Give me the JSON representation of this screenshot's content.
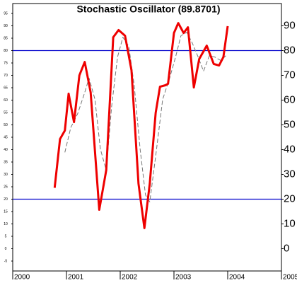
{
  "chart_data": {
    "type": "line",
    "title": "Stochastic Oscillator (89.8701)",
    "xlim": [
      2000,
      2005
    ],
    "xticks": [
      2000,
      2001,
      2002,
      2003,
      2004,
      2005
    ],
    "ylim": [
      -9,
      99
    ],
    "yticks": [
      0,
      10,
      20,
      30,
      40,
      50,
      60,
      70,
      80,
      90
    ],
    "y2lim": [
      -9,
      99
    ],
    "y2ticks": [
      -5,
      0,
      5,
      10,
      15,
      20,
      25,
      30,
      35,
      40,
      45,
      50,
      55,
      60,
      65,
      70,
      75,
      80,
      85,
      90,
      95
    ],
    "hlines": [
      80,
      20
    ],
    "hline_color": "#0000cc",
    "series": [
      {
        "color": "#ee0000",
        "dashed": false,
        "width": 3,
        "x": [
          2000.78,
          2000.88,
          2000.97,
          2001.04,
          2001.14,
          2001.24,
          2001.34,
          2001.45,
          2001.61,
          2001.74,
          2001.87,
          2001.97,
          2002.09,
          2002.21,
          2002.34,
          2002.45,
          2002.55,
          2002.66,
          2002.74,
          2002.84,
          2002.89,
          2003.0,
          2003.08,
          2003.18,
          2003.26,
          2003.37,
          2003.47,
          2003.61,
          2003.74,
          2003.84,
          2003.92,
          2004.0
        ],
        "values": [
          24.6,
          44.3,
          47.7,
          62.6,
          51.1,
          70.0,
          75.4,
          63.1,
          15.7,
          31.7,
          85.4,
          88.3,
          86.0,
          72.0,
          26.3,
          8.3,
          26.3,
          54.9,
          65.4,
          66.0,
          66.6,
          87.1,
          91.1,
          87.1,
          89.4,
          65.1,
          76.6,
          82.0,
          74.6,
          74.0,
          77.4,
          89.87
        ]
      },
      {
        "color": "#777777",
        "dashed": true,
        "width": 1,
        "x": [
          2000.97,
          2001.08,
          2001.21,
          2001.34,
          2001.42,
          2001.53,
          2001.63,
          2001.74,
          2001.84,
          2001.95,
          2002.05,
          2002.16,
          2002.26,
          2002.37,
          2002.47,
          2002.55,
          2002.66,
          2002.79,
          2002.92,
          2003.03,
          2003.13,
          2003.24,
          2003.34,
          2003.45,
          2003.55,
          2003.66,
          2003.76,
          2003.87,
          2003.97
        ],
        "values": [
          38.9,
          48.9,
          54.6,
          63.1,
          68.9,
          60.3,
          40.3,
          31.7,
          57.4,
          77.4,
          85.4,
          81.7,
          66.0,
          40.3,
          21.7,
          18.9,
          37.4,
          60.3,
          68.9,
          77.4,
          86.0,
          87.4,
          83.1,
          77.4,
          71.7,
          78.0,
          77.4,
          76.0,
          78.0
        ]
      }
    ]
  }
}
